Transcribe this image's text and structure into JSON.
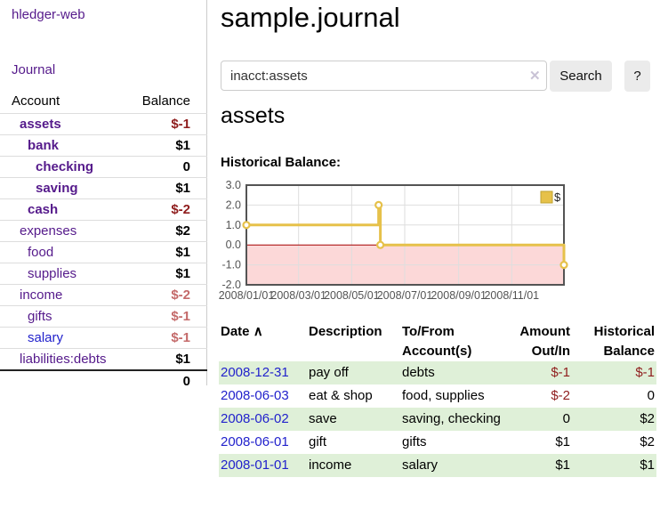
{
  "brand": "hledger-web",
  "nav": {
    "journal": "Journal"
  },
  "sidebar": {
    "account_header": "Account",
    "balance_header": "Balance",
    "accounts": [
      {
        "name": "assets",
        "balance": "$-1"
      },
      {
        "name": "bank",
        "balance": "$1"
      },
      {
        "name": "checking",
        "balance": "0"
      },
      {
        "name": "saving",
        "balance": "$1"
      },
      {
        "name": "cash",
        "balance": "$-2"
      },
      {
        "name": "expenses",
        "balance": "$2"
      },
      {
        "name": "food",
        "balance": "$1"
      },
      {
        "name": "supplies",
        "balance": "$1"
      },
      {
        "name": "income",
        "balance": "$-2"
      },
      {
        "name": "gifts",
        "balance": "$-1"
      },
      {
        "name": "salary",
        "balance": "$-1"
      },
      {
        "name": "liabilities:debts",
        "balance": "$1"
      }
    ],
    "total": "0"
  },
  "header": {
    "title": "sample.journal"
  },
  "search": {
    "value": "inacct:assets",
    "clear_icon": "✕",
    "search_button": "Search",
    "help_button": "?"
  },
  "account_page": {
    "heading": "assets",
    "chart_title": "Historical Balance:"
  },
  "chart_data": {
    "type": "line",
    "step": true,
    "title": "Historical Balance",
    "series": [
      {
        "name": "$",
        "color": "#e6c14a",
        "points": [
          [
            "2008-01-01",
            1
          ],
          [
            "2008-06-01",
            2
          ],
          [
            "2008-06-03",
            0
          ],
          [
            "2008-12-31",
            -1
          ]
        ]
      }
    ],
    "x_ticks": [
      "2008/01/01",
      "2008/03/01",
      "2008/05/01",
      "2008/07/01",
      "2008/09/01",
      "2008/11/01"
    ],
    "y_ticks": [
      "3.0",
      "2.0",
      "1.0",
      "0.0",
      "-1.0",
      "-2.0"
    ],
    "ylim": [
      -2,
      3
    ],
    "xlim": [
      "2008-01-01",
      "2008-12-31"
    ],
    "grid": true,
    "negative_region_color": "#fcd8d8",
    "zero_line_color": "#a40000",
    "legend": {
      "label": "$",
      "position": "top-right"
    }
  },
  "register": {
    "headers": {
      "date": "Date",
      "sort_indicator": "∧",
      "description": "Description",
      "accounts": "To/From Account(s)",
      "amount": "Amount Out/In",
      "balance": "Historical Balance"
    },
    "rows": [
      {
        "date": "2008-12-31",
        "description": "pay off",
        "accounts": "debts",
        "amount": "$-1",
        "balance": "$-1"
      },
      {
        "date": "2008-06-03",
        "description": "eat & shop",
        "accounts": "food, supplies",
        "amount": "$-2",
        "balance": "0"
      },
      {
        "date": "2008-06-02",
        "description": "save",
        "accounts": "saving, checking",
        "amount": "0",
        "balance": "$2"
      },
      {
        "date": "2008-06-01",
        "description": "gift",
        "accounts": "gifts",
        "amount": "$1",
        "balance": "$2"
      },
      {
        "date": "2008-01-01",
        "description": "income",
        "accounts": "salary",
        "amount": "$1",
        "balance": "$1"
      }
    ]
  },
  "colors": {
    "link_purple": "#551a8b",
    "link_blue": "#2222cc",
    "negative_strong": "#8f1d1d",
    "negative_soft": "#c46a6a",
    "row_green": "#dff0d8",
    "series_gold": "#e6c14a",
    "chart_negative_bg": "#fcd8d8",
    "chart_zero_line": "#a40000"
  }
}
